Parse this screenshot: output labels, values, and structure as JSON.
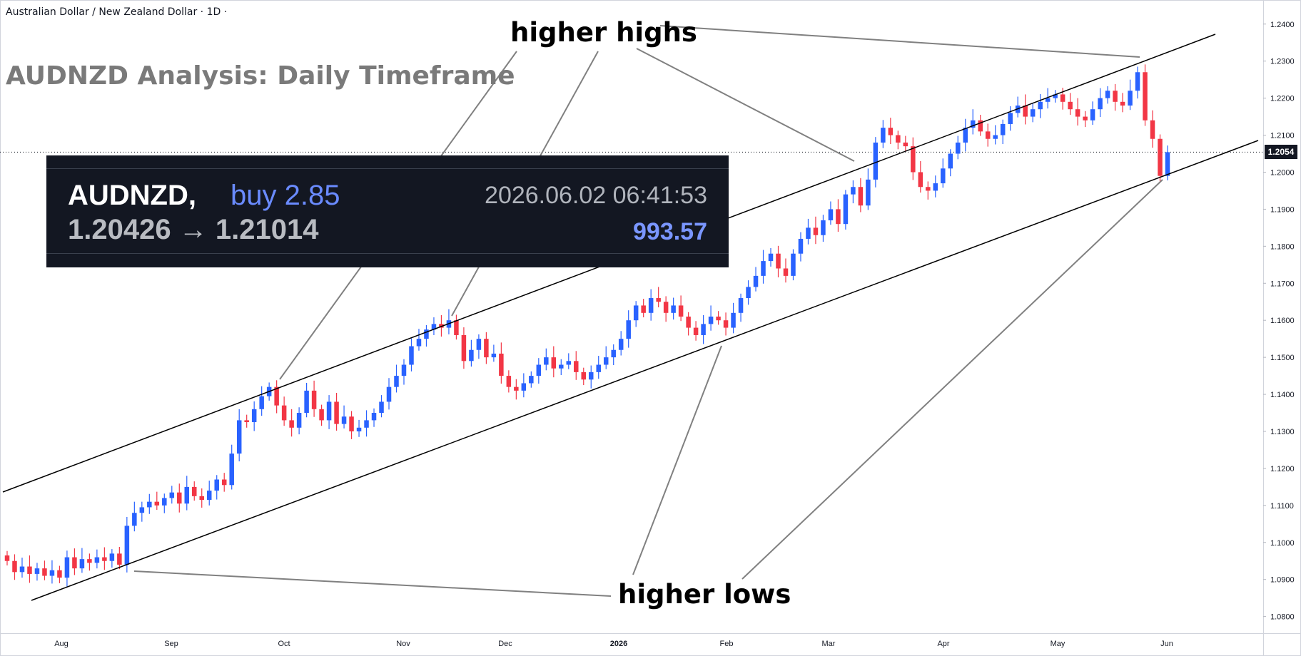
{
  "header": {
    "symbol_line": "Australian Dollar / New Zealand Dollar · 1D ·",
    "headline": "AUDNZD Analysis: Daily Timeframe"
  },
  "annotations": {
    "highs_label": "higher highs",
    "lows_label": "higher lows"
  },
  "trade_box": {
    "symbol": "AUDNZD",
    "side": "buy 2.85",
    "datetime": "2026.06.02 06:41:53",
    "entry": "1.20426",
    "arrow": "→",
    "exit": "1.21014",
    "pnl": "993.57"
  },
  "colors": {
    "up": "#2962ff",
    "down": "#f23645",
    "trendline": "#000000",
    "annotation_line": "#808080",
    "trade_box_bg": "#131722"
  },
  "chart_data": {
    "type": "candlestick",
    "symbol": "AUDNZD",
    "timeframe": "1D",
    "ylim": [
      1.0755,
      1.2465
    ],
    "y_ticks": [
      "1.2400",
      "1.2300",
      "1.2200",
      "1.2100",
      "1.2000",
      "1.1900",
      "1.1800",
      "1.1700",
      "1.1600",
      "1.1500",
      "1.1400",
      "1.1300",
      "1.1200",
      "1.1100",
      "1.1000",
      "1.0900",
      "1.0800"
    ],
    "x_ticks": [
      "Aug",
      "Sep",
      "Oct",
      "Nov",
      "Dec",
      "2026",
      "Feb",
      "Mar",
      "Apr",
      "May",
      "Jun"
    ],
    "bold_x_ticks": [
      "2026"
    ],
    "current_price": "1.2054",
    "candle_close_path": [
      1.095,
      1.092,
      1.0935,
      1.0915,
      1.093,
      1.091,
      1.0925,
      1.0905,
      1.096,
      1.093,
      1.0955,
      1.0945,
      1.096,
      1.095,
      1.097,
      1.094,
      1.1045,
      1.108,
      1.1095,
      1.111,
      1.11,
      1.112,
      1.1135,
      1.1105,
      1.115,
      1.1125,
      1.1115,
      1.114,
      1.117,
      1.1155,
      1.124,
      1.133,
      1.1325,
      1.136,
      1.1395,
      1.142,
      1.137,
      1.133,
      1.131,
      1.135,
      1.141,
      1.136,
      1.133,
      1.138,
      1.132,
      1.134,
      1.13,
      1.131,
      1.133,
      1.135,
      1.138,
      1.142,
      1.145,
      1.148,
      1.153,
      1.155,
      1.1575,
      1.159,
      1.158,
      1.16,
      1.156,
      1.149,
      1.152,
      1.155,
      1.15,
      1.151,
      1.145,
      1.142,
      1.141,
      1.143,
      1.145,
      1.148,
      1.15,
      1.147,
      1.148,
      1.149,
      1.146,
      1.144,
      1.146,
      1.148,
      1.15,
      1.152,
      1.155,
      1.16,
      1.164,
      1.162,
      1.166,
      1.165,
      1.162,
      1.164,
      1.161,
      1.158,
      1.156,
      1.159,
      1.161,
      1.16,
      1.158,
      1.162,
      1.166,
      1.169,
      1.172,
      1.176,
      1.178,
      1.174,
      1.172,
      1.178,
      1.182,
      1.185,
      1.183,
      1.187,
      1.19,
      1.186,
      1.194,
      1.196,
      1.191,
      1.198,
      1.208,
      1.212,
      1.21,
      1.208,
      1.207,
      1.2,
      1.196,
      1.195,
      1.197,
      1.201,
      1.205,
      1.208,
      1.212,
      1.214,
      1.211,
      1.209,
      1.21,
      1.213,
      1.216,
      1.218,
      1.215,
      1.217,
      1.219,
      1.22,
      1.221,
      1.219,
      1.217,
      1.215,
      1.214,
      1.217,
      1.22,
      1.222,
      1.219,
      1.218,
      1.222,
      1.227,
      1.214,
      1.209,
      1.199,
      1.2054
    ]
  }
}
